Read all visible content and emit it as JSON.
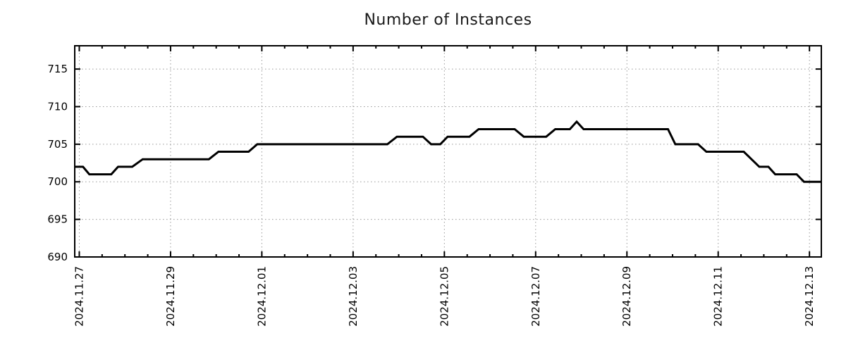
{
  "chart_data": {
    "type": "line",
    "title": "Number of Instances",
    "xlabel": "",
    "ylabel": "",
    "legend": "none",
    "grid": "dotted gridlines at major ticks, mirrored inward ticks on all four borders",
    "x_unit": "days since 2024-11-27 00:00",
    "xlim": [
      -0.1,
      16.26
    ],
    "ylim": [
      690,
      718.1
    ],
    "x_ticks": [
      {
        "day": 0,
        "label": "2024.11.27"
      },
      {
        "day": 2,
        "label": "2024.11.29"
      },
      {
        "day": 4,
        "label": "2024.12.01"
      },
      {
        "day": 6,
        "label": "2024.12.03"
      },
      {
        "day": 8,
        "label": "2024.12.05"
      },
      {
        "day": 10,
        "label": "2024.12.07"
      },
      {
        "day": 12,
        "label": "2024.12.09"
      },
      {
        "day": 14,
        "label": "2024.12.11"
      },
      {
        "day": 16,
        "label": "2024.12.13"
      }
    ],
    "x_minor_tick_interval_days": 0.5,
    "y_ticks": [
      690,
      695,
      700,
      705,
      710,
      715
    ],
    "colors": {
      "line": "#000000",
      "border": "#000000",
      "grid": "#999999",
      "text": "#000000"
    },
    "series": [
      {
        "name": "Number of Instances",
        "color": "#000000",
        "points_day_value": [
          [
            -0.1,
            702
          ],
          [
            0.08,
            702
          ],
          [
            0.22,
            701
          ],
          [
            0.7,
            701
          ],
          [
            0.85,
            702
          ],
          [
            1.16,
            702
          ],
          [
            1.39,
            703
          ],
          [
            2.84,
            703
          ],
          [
            3.05,
            704
          ],
          [
            3.71,
            704
          ],
          [
            3.9,
            705
          ],
          [
            6.75,
            705
          ],
          [
            6.96,
            706
          ],
          [
            7.53,
            706
          ],
          [
            7.71,
            705
          ],
          [
            7.91,
            705
          ],
          [
            8.07,
            706
          ],
          [
            8.55,
            706
          ],
          [
            8.75,
            707
          ],
          [
            9.54,
            707
          ],
          [
            9.74,
            706
          ],
          [
            10.23,
            706
          ],
          [
            10.43,
            707
          ],
          [
            10.75,
            707
          ],
          [
            10.9,
            708
          ],
          [
            11.05,
            707
          ],
          [
            12.9,
            707
          ],
          [
            13.06,
            705
          ],
          [
            13.56,
            705
          ],
          [
            13.74,
            704
          ],
          [
            14.56,
            704
          ],
          [
            14.9,
            702
          ],
          [
            15.1,
            702
          ],
          [
            15.25,
            701
          ],
          [
            15.72,
            701
          ],
          [
            15.88,
            700
          ],
          [
            16.26,
            700
          ]
        ]
      }
    ]
  }
}
